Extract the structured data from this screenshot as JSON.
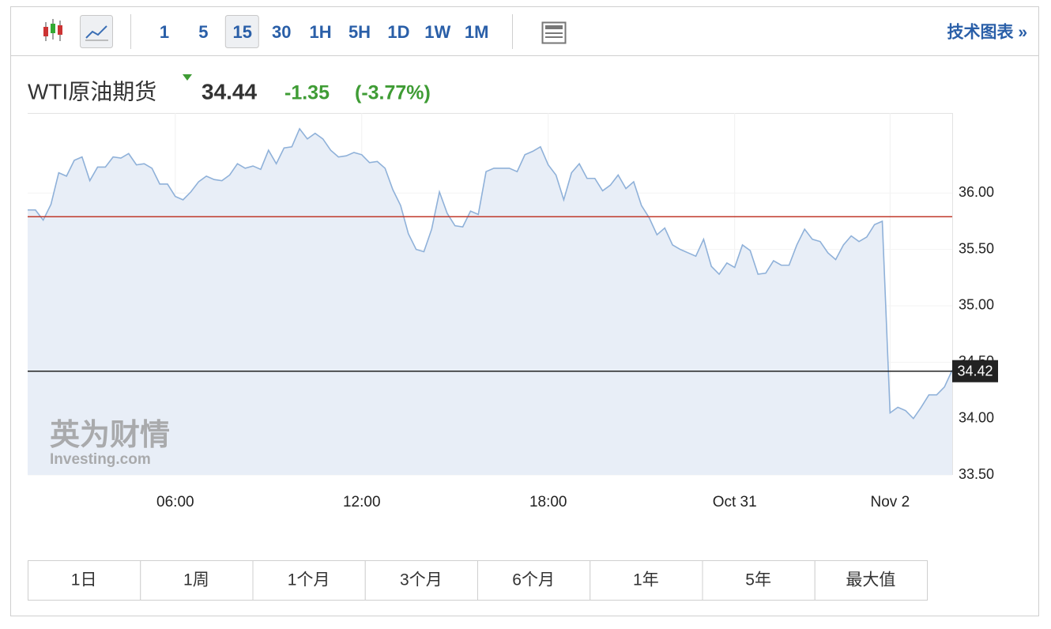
{
  "toolbar": {
    "intervals": [
      "1",
      "5",
      "15",
      "30",
      "1H",
      "5H",
      "1D",
      "1W",
      "1M"
    ],
    "active": 2,
    "link": "技术图表 »"
  },
  "quote": {
    "name": "WTI原油期货",
    "price": "34.44",
    "change": "-1.35",
    "change_percent": "(-3.77%)"
  },
  "watermark": {
    "cn": "英为财情",
    "en": "Investing.com"
  },
  "chart_data": {
    "type": "line",
    "color": "#8fb1d9",
    "fill": "#e8eef7",
    "values": [
      35.85,
      35.85,
      35.76,
      35.9,
      36.18,
      36.15,
      36.29,
      36.32,
      36.11,
      36.23,
      36.23,
      36.32,
      36.31,
      36.35,
      36.25,
      36.26,
      36.22,
      36.08,
      36.08,
      35.97,
      35.94,
      36.01,
      36.1,
      36.15,
      36.12,
      36.11,
      36.16,
      36.26,
      36.22,
      36.24,
      36.21,
      36.38,
      36.26,
      36.4,
      36.41,
      36.57,
      36.48,
      36.53,
      36.48,
      36.38,
      36.32,
      36.33,
      36.36,
      36.34,
      36.27,
      36.28,
      36.22,
      36.03,
      35.89,
      35.64,
      35.5,
      35.48,
      35.68,
      36.01,
      35.82,
      35.71,
      35.7,
      35.84,
      35.81,
      36.19,
      36.22,
      36.22,
      36.22,
      36.19,
      36.34,
      36.37,
      36.41,
      36.25,
      36.16,
      35.94,
      36.18,
      36.26,
      36.13,
      36.13,
      36.02,
      36.07,
      36.16,
      36.04,
      36.1,
      35.89,
      35.78,
      35.63,
      35.69,
      35.54,
      35.5,
      35.47,
      35.44,
      35.59,
      35.35,
      35.28,
      35.38,
      35.34,
      35.54,
      35.49,
      35.28,
      35.29,
      35.4,
      35.36,
      35.36,
      35.54,
      35.68,
      35.59,
      35.57,
      35.47,
      35.41,
      35.54,
      35.62,
      35.57,
      35.61,
      35.72,
      35.75,
      34.05,
      34.1,
      34.07,
      34.0,
      34.1,
      34.21,
      34.21,
      34.28,
      34.43
    ],
    "xlim": [
      0,
      119
    ],
    "xticks": [
      {
        "value": 19,
        "label": "06:00"
      },
      {
        "value": 43,
        "label": "12:00"
      },
      {
        "value": 67,
        "label": "18:00"
      },
      {
        "value": 91,
        "label": "Oct 31"
      },
      {
        "value": 111,
        "label": "Nov 2"
      }
    ],
    "ylim": [
      33.5,
      36.71
    ],
    "yticks": [
      {
        "value": 33.5,
        "label": "33.50"
      },
      {
        "value": 34,
        "label": "34.00"
      },
      {
        "value": 34.5,
        "label": "34.50"
      },
      {
        "value": 35,
        "label": "35.00"
      },
      {
        "value": 35.5,
        "label": "35.50"
      },
      {
        "value": 36,
        "label": "36.00"
      }
    ],
    "reference_lines": [
      {
        "value": 35.79,
        "color": "#c0392b"
      },
      {
        "value": 34.42,
        "label": "34.42",
        "color": "#222222"
      }
    ]
  },
  "ranges": [
    "1日",
    "1周",
    "1个月",
    "3个月",
    "6个月",
    "1年",
    "5年",
    "最大值"
  ]
}
